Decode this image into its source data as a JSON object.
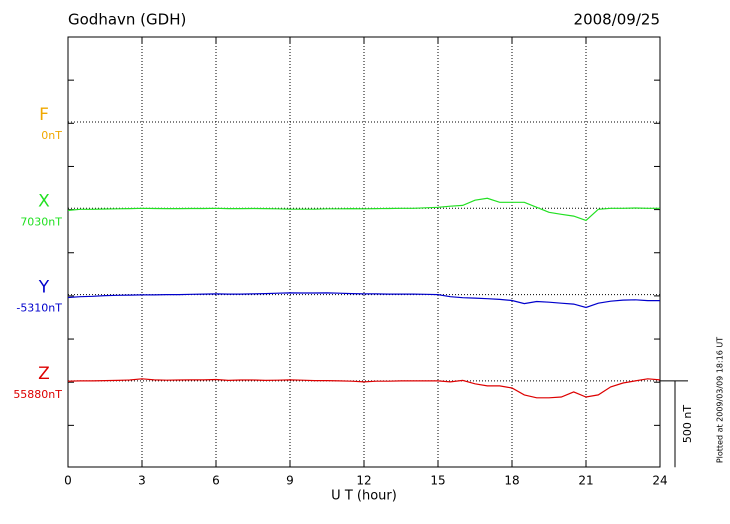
{
  "chart_data": {
    "type": "line",
    "title": "Godhavn (GDH)",
    "date": "2008/09/25",
    "x_label": "U T (hour)",
    "footnote": "Plotted at 2009/03/09 18:16 UT",
    "scale_bar": {
      "value": 500,
      "label": "500 nT"
    },
    "xlim": [
      0,
      24
    ],
    "xticks": [
      0,
      3,
      6,
      9,
      12,
      15,
      18,
      21,
      24
    ],
    "grid": true,
    "x": [
      0,
      0.5,
      1,
      1.5,
      2,
      2.5,
      3,
      3.5,
      4,
      4.5,
      5,
      5.5,
      6,
      6.5,
      7,
      7.5,
      8,
      8.5,
      9,
      9.5,
      10,
      10.5,
      11,
      11.5,
      12,
      12.5,
      13,
      13.5,
      14,
      14.5,
      15,
      15.5,
      16,
      16.5,
      17,
      17.5,
      18,
      18.5,
      19,
      19.5,
      20,
      20.5,
      21,
      21.5,
      22,
      22.5,
      23,
      23.5,
      24
    ],
    "series": [
      {
        "name": "F",
        "color": "#f0a800",
        "offset": {
          "value": 0,
          "label": "0nT"
        }
      },
      {
        "name": "X",
        "color": "#22e022",
        "offset": {
          "value": 7030,
          "label": "7030nT"
        },
        "values": [
          -12,
          -6,
          -6,
          -4,
          -3,
          -2,
          0,
          -1,
          -2,
          -2,
          -1,
          -1,
          0,
          -2,
          -2,
          -1,
          -2,
          -3,
          -5,
          -5,
          -5,
          -3,
          -3,
          -2,
          -3,
          -2,
          -1,
          0,
          0,
          3,
          6,
          12,
          17,
          47,
          58,
          35,
          35,
          35,
          6,
          -23,
          -35,
          -45,
          -70,
          -6,
          0,
          0,
          2,
          0,
          0
        ]
      },
      {
        "name": "Y",
        "color": "#0000cc",
        "offset": {
          "value": -5310,
          "label": "-5310nT"
        },
        "values": [
          -17,
          -12,
          -10,
          -6,
          -4,
          -3,
          -2,
          -2,
          0,
          0,
          2,
          3,
          4,
          3,
          3,
          4,
          6,
          8,
          10,
          9,
          9,
          10,
          8,
          6,
          4,
          4,
          3,
          3,
          3,
          2,
          0,
          -12,
          -18,
          -20,
          -24,
          -28,
          -34,
          -52,
          -40,
          -44,
          -50,
          -55,
          -75,
          -50,
          -38,
          -32,
          -30,
          -35,
          -35
        ]
      },
      {
        "name": "Z",
        "color": "#dd0000",
        "offset": {
          "value": 55880,
          "label": "55880nT"
        },
        "values": [
          -2,
          0,
          0,
          2,
          3,
          5,
          12,
          6,
          4,
          5,
          6,
          6,
          8,
          3,
          5,
          5,
          3,
          4,
          6,
          4,
          2,
          2,
          0,
          -2,
          -6,
          -2,
          -2,
          0,
          0,
          0,
          0,
          -6,
          3,
          -17,
          -29,
          -29,
          -41,
          -81,
          -98,
          -98,
          -93,
          -64,
          -93,
          -81,
          -35,
          -12,
          0,
          12,
          6
        ]
      }
    ]
  }
}
